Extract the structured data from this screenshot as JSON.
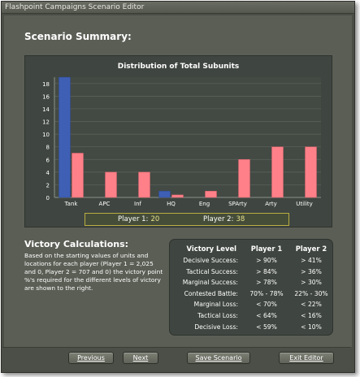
{
  "window": {
    "title": "Flashpoint Campaigns Scenario Editor"
  },
  "summary": {
    "heading": "Scenario Summary:",
    "players": {
      "p1_label": "Player 1:",
      "p1_value": "20",
      "p2_label": "Player 2:",
      "p2_value": "38"
    }
  },
  "chart_data": {
    "type": "bar",
    "title": "Distribution of Total Subunits",
    "categories": [
      "Tank",
      "APC",
      "Inf",
      "HQ",
      "Eng",
      "SPArty",
      "Arty",
      "Utility"
    ],
    "series": [
      {
        "color": "#3f5fb5",
        "values": [
          19,
          0,
          0,
          1,
          0,
          0,
          0,
          0
        ]
      },
      {
        "color": "#ff8088",
        "values": [
          7,
          4,
          4,
          0.4,
          1,
          6,
          8,
          8
        ]
      }
    ],
    "xlabel": "",
    "ylabel": "",
    "ylim": [
      0,
      19
    ],
    "yticks": [
      0,
      2,
      4,
      6,
      8,
      10,
      12,
      14,
      16,
      18
    ],
    "grid": true,
    "legend": "none"
  },
  "victory": {
    "heading": "Victory Calculations:",
    "description": "Based on the starting values of units and locations for each player (Player 1 = 2,025 and 0, Player 2 = 707 and 0) the victory point %'s required for the different levels of victory are shown to the right.",
    "columns": [
      "Victory Level",
      "Player 1",
      "Player 2"
    ],
    "rows": [
      {
        "level": "Decisive Success:",
        "p1": "> 90%",
        "p2": "> 41%"
      },
      {
        "level": "Tactical Success:",
        "p1": "> 84%",
        "p2": "> 36%"
      },
      {
        "level": "Marginal Success:",
        "p1": "> 78%",
        "p2": "> 30%"
      },
      {
        "level": "Contested Battle:",
        "p1": "70% - 78%",
        "p2": "22% - 30%"
      },
      {
        "level": "Marginal Loss:",
        "p1": "< 70%",
        "p2": "< 22%"
      },
      {
        "level": "Tactical Loss:",
        "p1": "< 64%",
        "p2": "< 16%"
      },
      {
        "level": "Decisive Loss:",
        "p1": "< 59%",
        "p2": "< 10%"
      }
    ]
  },
  "buttons": {
    "previous": "Previous",
    "next": "Next",
    "save": "Save Scenario",
    "exit": "Exit Editor"
  }
}
